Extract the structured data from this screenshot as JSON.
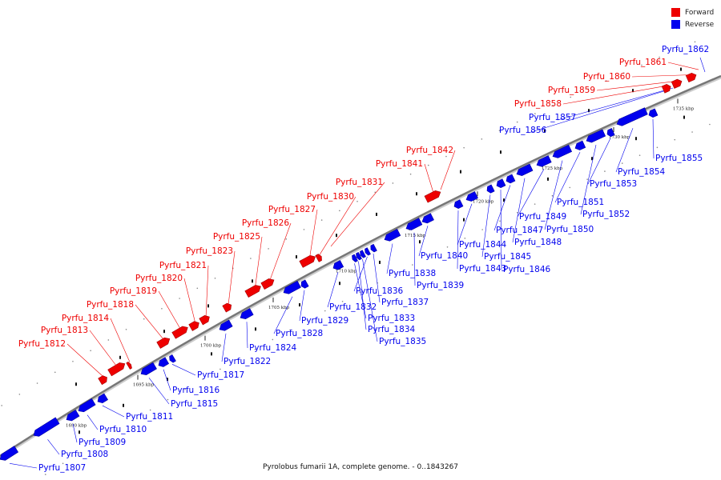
{
  "title": "Pyrolobus fumarii 1A, complete genome. - 0..1843267",
  "legend": [
    {
      "label": "Forward",
      "color": "#ee0000"
    },
    {
      "label": "Reverse",
      "color": "#0000ee"
    }
  ],
  "colors": {
    "forward": "#ee0000",
    "reverse": "#0000ee",
    "axis": "#777777"
  },
  "ticks": [
    "1690 kbp",
    "1695 kbp",
    "1700 kbp",
    "1705 kbp",
    "1710 kbp",
    "1715 kbp",
    "1720 kbp",
    "1725 kbp",
    "1730 kbp",
    "1735 kbp"
  ],
  "forward_labels": [
    "Pyrfu_1812",
    "Pyrfu_1813",
    "Pyrfu_1814",
    "Pyrfu_1818",
    "Pyrfu_1819",
    "Pyrfu_1820",
    "Pyrfu_1821",
    "Pyrfu_1823",
    "Pyrfu_1825",
    "Pyrfu_1826",
    "Pyrfu_1827",
    "Pyrfu_1830",
    "Pyrfu_1831",
    "Pyrfu_1841",
    "Pyrfu_1842",
    "Pyrfu_1858",
    "Pyrfu_1859",
    "Pyrfu_1860",
    "Pyrfu_1861"
  ],
  "reverse_labels": [
    "Pyrfu_1807",
    "Pyrfu_1808",
    "Pyrfu_1809",
    "Pyrfu_1810",
    "Pyrfu_1811",
    "Pyrfu_1815",
    "Pyrfu_1816",
    "Pyrfu_1817",
    "Pyrfu_1822",
    "Pyrfu_1824",
    "Pyrfu_1828",
    "Pyrfu_1829",
    "Pyrfu_1832",
    "Pyrfu_1833",
    "Pyrfu_1834",
    "Pyrfu_1835",
    "Pyrfu_1836",
    "Pyrfu_1837",
    "Pyrfu_1838",
    "Pyrfu_1839",
    "Pyrfu_1840",
    "Pyrfu_1843",
    "Pyrfu_1844",
    "Pyrfu_1845",
    "Pyrfu_1846",
    "Pyrfu_1847",
    "Pyrfu_1848",
    "Pyrfu_1849",
    "Pyrfu_1850",
    "Pyrfu_1851",
    "Pyrfu_1852",
    "Pyrfu_1853",
    "Pyrfu_1854",
    "Pyrfu_1855",
    "Pyrfu_1856",
    "Pyrfu_1857",
    "Pyrfu_1862"
  ]
}
